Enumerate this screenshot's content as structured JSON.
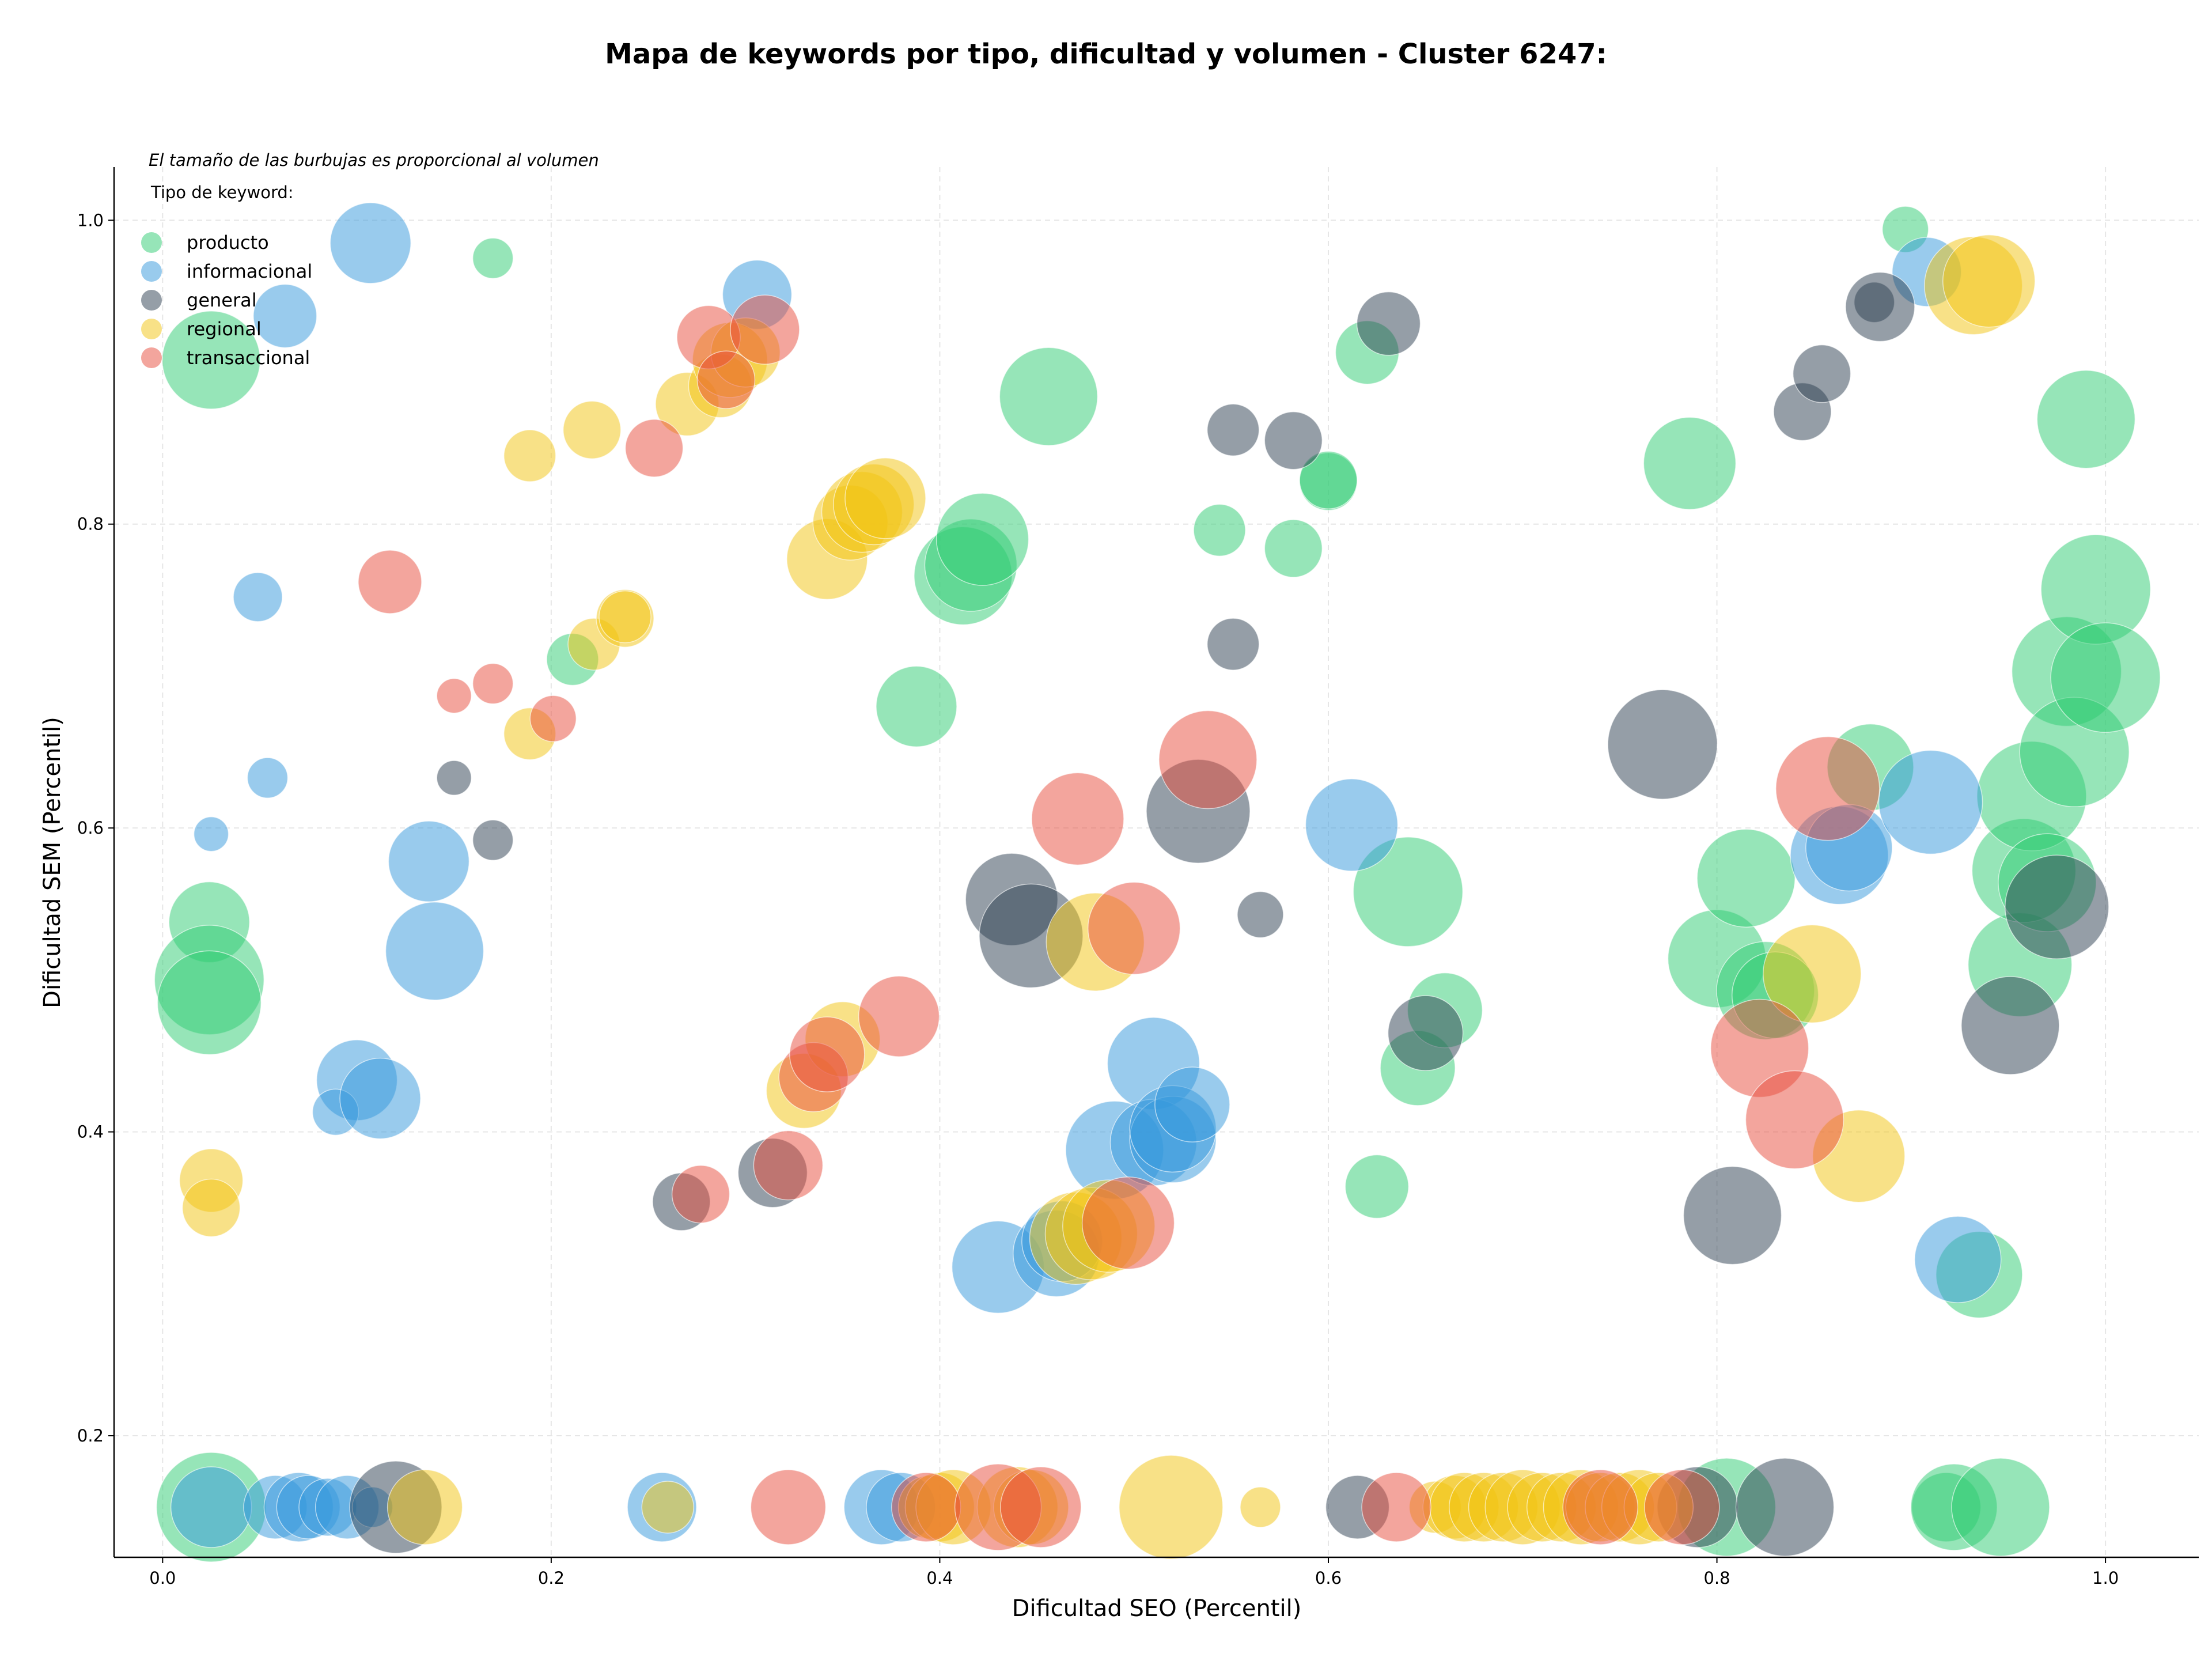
{
  "chart_data": {
    "type": "scatter",
    "title": "Mapa de keywords por tipo, dificultad y volumen - Cluster 6247:",
    "xlabel": "Dificultad SEO (Percentil)",
    "ylabel": "Dificultad SEM (Percentil)",
    "xlim": [
      -0.025,
      1.048
    ],
    "ylim": [
      0.12,
      1.035
    ],
    "xticks": [
      "0.0",
      "0.2",
      "0.4",
      "0.6",
      "0.8",
      "1.0"
    ],
    "yticks": [
      "0.2",
      "0.4",
      "0.6",
      "0.8",
      "1.0"
    ],
    "grid": true,
    "note": "El tamaño de las burbujas es proporcional al volumen",
    "legend": {
      "title": "Tipo de keyword:",
      "placement": "top-left"
    },
    "series": [
      {
        "name": "producto",
        "color": "#2ecc71",
        "points": [
          [
            0.025,
            0.908,
            34
          ],
          [
            0.024,
            0.538,
            28
          ],
          [
            0.024,
            0.5,
            38
          ],
          [
            0.024,
            0.485,
            36
          ],
          [
            0.025,
            0.153,
            38
          ],
          [
            0.17,
            0.975,
            14
          ],
          [
            0.211,
            0.711,
            18
          ],
          [
            0.388,
            0.68,
            28
          ],
          [
            0.412,
            0.766,
            34
          ],
          [
            0.416,
            0.773,
            32
          ],
          [
            0.422,
            0.79,
            32
          ],
          [
            0.456,
            0.884,
            34
          ],
          [
            0.544,
            0.796,
            18
          ],
          [
            0.582,
            0.784,
            20
          ],
          [
            0.6,
            0.828,
            20
          ],
          [
            0.6,
            0.829,
            20
          ],
          [
            0.62,
            0.913,
            22
          ],
          [
            0.625,
            0.364,
            22
          ],
          [
            0.641,
            0.558,
            38
          ],
          [
            0.646,
            0.442,
            26
          ],
          [
            0.66,
            0.48,
            26
          ],
          [
            0.786,
            0.84,
            32
          ],
          [
            0.8,
            0.514,
            34
          ],
          [
            0.805,
            0.153,
            34
          ],
          [
            0.815,
            0.567,
            34
          ],
          [
            0.825,
            0.493,
            34
          ],
          [
            0.83,
            0.49,
            30
          ],
          [
            0.879,
            0.64,
            30
          ],
          [
            0.897,
            0.994,
            16
          ],
          [
            0.918,
            0.153,
            24
          ],
          [
            0.922,
            0.153,
            30
          ],
          [
            0.935,
            0.306,
            30
          ],
          [
            0.946,
            0.153,
            34
          ],
          [
            0.956,
            0.51,
            36
          ],
          [
            0.958,
            0.572,
            36
          ],
          [
            0.962,
            0.621,
            38
          ],
          [
            0.97,
            0.564,
            34
          ],
          [
            0.98,
            0.703,
            38
          ],
          [
            0.984,
            0.65,
            38
          ],
          [
            0.99,
            0.869,
            34
          ],
          [
            0.995,
            0.757,
            38
          ],
          [
            1.0,
            0.699,
            38
          ]
        ]
      },
      {
        "name": "informacional",
        "color": "#3498db",
        "points": [
          [
            0.025,
            0.596,
            12
          ],
          [
            0.049,
            0.752,
            17
          ],
          [
            0.054,
            0.633,
            14
          ],
          [
            0.063,
            0.937,
            22
          ],
          [
            0.107,
            0.985,
            28
          ],
          [
            0.1,
            0.434,
            28
          ],
          [
            0.089,
            0.413,
            16
          ],
          [
            0.112,
            0.422,
            28
          ],
          [
            0.137,
            0.578,
            28
          ],
          [
            0.14,
            0.519,
            34
          ],
          [
            0.025,
            0.153,
            28
          ],
          [
            0.058,
            0.153,
            22
          ],
          [
            0.07,
            0.153,
            24
          ],
          [
            0.075,
            0.153,
            22
          ],
          [
            0.085,
            0.153,
            20
          ],
          [
            0.095,
            0.153,
            22
          ],
          [
            0.108,
            0.153,
            14
          ],
          [
            0.257,
            0.153,
            24
          ],
          [
            0.306,
            0.951,
            24
          ],
          [
            0.37,
            0.153,
            26
          ],
          [
            0.38,
            0.153,
            24
          ],
          [
            0.43,
            0.311,
            32
          ],
          [
            0.46,
            0.32,
            30
          ],
          [
            0.463,
            0.328,
            28
          ],
          [
            0.49,
            0.388,
            34
          ],
          [
            0.51,
            0.445,
            32
          ],
          [
            0.51,
            0.393,
            30
          ],
          [
            0.52,
            0.395,
            30
          ],
          [
            0.52,
            0.402,
            30
          ],
          [
            0.53,
            0.418,
            26
          ],
          [
            0.612,
            0.602,
            32
          ],
          [
            0.863,
            0.582,
            34
          ],
          [
            0.868,
            0.587,
            30
          ],
          [
            0.908,
            0.966,
            24
          ],
          [
            0.91,
            0.617,
            36
          ],
          [
            0.924,
            0.316,
            30
          ]
        ]
      },
      {
        "name": "general",
        "color": "#2c3e50",
        "points": [
          [
            0.12,
            0.153,
            32
          ],
          [
            0.15,
            0.633,
            12
          ],
          [
            0.17,
            0.592,
            14
          ],
          [
            0.267,
            0.354,
            20
          ],
          [
            0.314,
            0.373,
            24
          ],
          [
            0.437,
            0.553,
            32
          ],
          [
            0.447,
            0.529,
            36
          ],
          [
            0.533,
            0.611,
            36
          ],
          [
            0.551,
            0.862,
            18
          ],
          [
            0.551,
            0.721,
            18
          ],
          [
            0.565,
            0.543,
            16
          ],
          [
            0.582,
            0.855,
            20
          ],
          [
            0.615,
            0.153,
            22
          ],
          [
            0.631,
            0.932,
            22
          ],
          [
            0.65,
            0.465,
            26
          ],
          [
            0.772,
            0.655,
            38
          ],
          [
            0.79,
            0.153,
            28
          ],
          [
            0.808,
            0.345,
            34
          ],
          [
            0.835,
            0.153,
            34
          ],
          [
            0.844,
            0.874,
            20
          ],
          [
            0.854,
            0.899,
            20
          ],
          [
            0.881,
            0.946,
            14
          ],
          [
            0.884,
            0.943,
            24
          ],
          [
            0.951,
            0.47,
            34
          ],
          [
            0.975,
            0.548,
            36
          ]
        ]
      },
      {
        "name": "regional",
        "color": "#f1c40f",
        "points": [
          [
            0.025,
            0.368,
            22
          ],
          [
            0.025,
            0.35,
            20
          ],
          [
            0.135,
            0.153,
            26
          ],
          [
            0.189,
            0.845,
            18
          ],
          [
            0.189,
            0.662,
            18
          ],
          [
            0.221,
            0.862,
            20
          ],
          [
            0.222,
            0.721,
            18
          ],
          [
            0.238,
            0.738,
            20
          ],
          [
            0.238,
            0.739,
            18
          ],
          [
            0.27,
            0.879,
            22
          ],
          [
            0.287,
            0.891,
            22
          ],
          [
            0.292,
            0.908,
            26
          ],
          [
            0.3,
            0.913,
            24
          ],
          [
            0.26,
            0.153,
            18
          ],
          [
            0.33,
            0.427,
            26
          ],
          [
            0.342,
            0.777,
            28
          ],
          [
            0.35,
            0.461,
            26
          ],
          [
            0.354,
            0.801,
            26
          ],
          [
            0.36,
            0.808,
            28
          ],
          [
            0.366,
            0.813,
            28
          ],
          [
            0.372,
            0.817,
            28
          ],
          [
            0.395,
            0.153,
            22
          ],
          [
            0.4,
            0.153,
            24
          ],
          [
            0.407,
            0.153,
            26
          ],
          [
            0.44,
            0.153,
            28
          ],
          [
            0.447,
            0.153,
            26
          ],
          [
            0.47,
            0.33,
            32
          ],
          [
            0.478,
            0.333,
            32
          ],
          [
            0.48,
            0.525,
            34
          ],
          [
            0.487,
            0.338,
            32
          ],
          [
            0.519,
            0.153,
            36
          ],
          [
            0.565,
            0.153,
            14
          ],
          [
            0.655,
            0.153,
            18
          ],
          [
            0.665,
            0.153,
            22
          ],
          [
            0.67,
            0.153,
            24
          ],
          [
            0.68,
            0.153,
            24
          ],
          [
            0.69,
            0.153,
            24
          ],
          [
            0.7,
            0.153,
            26
          ],
          [
            0.71,
            0.153,
            24
          ],
          [
            0.72,
            0.153,
            24
          ],
          [
            0.73,
            0.153,
            26
          ],
          [
            0.74,
            0.153,
            24
          ],
          [
            0.75,
            0.153,
            24
          ],
          [
            0.76,
            0.153,
            26
          ],
          [
            0.77,
            0.153,
            24
          ],
          [
            0.849,
            0.504,
            34
          ],
          [
            0.873,
            0.384,
            32
          ],
          [
            0.932,
            0.957,
            34
          ],
          [
            0.94,
            0.96,
            32
          ]
        ]
      },
      {
        "name": "transaccional",
        "color": "#e74c3c",
        "points": [
          [
            0.117,
            0.762,
            22
          ],
          [
            0.15,
            0.687,
            12
          ],
          [
            0.17,
            0.695,
            14
          ],
          [
            0.201,
            0.672,
            16
          ],
          [
            0.253,
            0.85,
            20
          ],
          [
            0.277,
            0.359,
            20
          ],
          [
            0.281,
            0.923,
            22
          ],
          [
            0.29,
            0.895,
            20
          ],
          [
            0.31,
            0.928,
            24
          ],
          [
            0.322,
            0.378,
            24
          ],
          [
            0.322,
            0.153,
            26
          ],
          [
            0.335,
            0.436,
            24
          ],
          [
            0.342,
            0.451,
            26
          ],
          [
            0.379,
            0.476,
            28
          ],
          [
            0.393,
            0.153,
            24
          ],
          [
            0.43,
            0.153,
            30
          ],
          [
            0.452,
            0.153,
            28
          ],
          [
            0.471,
            0.606,
            32
          ],
          [
            0.497,
            0.34,
            32
          ],
          [
            0.5,
            0.534,
            32
          ],
          [
            0.538,
            0.645,
            34
          ],
          [
            0.635,
            0.153,
            24
          ],
          [
            0.74,
            0.153,
            26
          ],
          [
            0.782,
            0.153,
            26
          ],
          [
            0.822,
            0.455,
            34
          ],
          [
            0.84,
            0.408,
            34
          ],
          [
            0.857,
            0.626,
            36
          ]
        ]
      }
    ]
  }
}
